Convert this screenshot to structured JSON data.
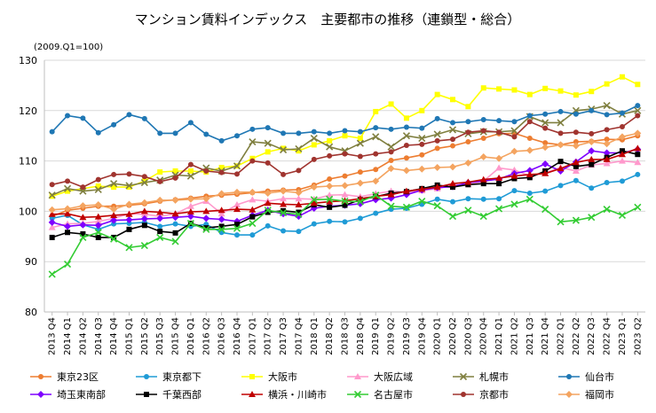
{
  "chart_data": {
    "type": "line",
    "title": "マンション賃料インデックス　主要都市の推移（連鎖型・総合）",
    "note": "(2009.Q1=100)",
    "xlabel": "",
    "ylabel": "",
    "ylim": [
      80,
      130
    ],
    "yticks": [
      80,
      90,
      100,
      110,
      120,
      130
    ],
    "grid": true,
    "legend_position": "bottom",
    "x": [
      "2013 Q4",
      "2014 Q1",
      "2014 Q2",
      "2014 Q3",
      "2014 Q4",
      "2015 Q1",
      "2015 Q2",
      "2015 Q3",
      "2015 Q4",
      "2016 Q1",
      "2016 Q2",
      "2016 Q3",
      "2016 Q4",
      "2017 Q1",
      "2017 Q2",
      "2017 Q3",
      "2017 Q4",
      "2018 Q1",
      "2018 Q2",
      "2018 Q3",
      "2018 Q4",
      "2019 Q1",
      "2019 Q2",
      "2019 Q3",
      "2019 Q4",
      "2020 Q1",
      "2020 Q2",
      "2020 Q3",
      "2020 Q4",
      "2021 Q1",
      "2021 Q2",
      "2021 Q3",
      "2021 Q4",
      "2022 Q1",
      "2022 Q2",
      "2022 Q3",
      "2022 Q4",
      "2023 Q1",
      "2023 Q2"
    ],
    "series": [
      {
        "name": "東京23区",
        "color": "#ED7D31",
        "marker": "circle",
        "values": [
          99.0,
          100.2,
          100.6,
          101.0,
          101.0,
          101.2,
          101.5,
          102.0,
          102.3,
          102.6,
          103.0,
          103.2,
          103.4,
          103.7,
          104.0,
          104.2,
          104.3,
          105.2,
          106.4,
          107.0,
          107.8,
          108.3,
          110.1,
          110.6,
          111.2,
          112.5,
          113.0,
          113.8,
          114.5,
          115.4,
          115.5,
          114.5,
          113.6,
          113.2,
          113.8,
          113.9,
          114.3,
          114.2,
          115.0
        ]
      },
      {
        "name": "東京都下",
        "color": "#1F9BD6",
        "marker": "circle",
        "values": [
          98.6,
          99.2,
          97.3,
          96.4,
          97.5,
          97.6,
          97.8,
          97.0,
          97.5,
          97.0,
          97.4,
          95.8,
          95.3,
          95.3,
          97.1,
          96.1,
          96.0,
          97.5,
          98.0,
          97.9,
          98.6,
          99.6,
          100.4,
          100.6,
          101.4,
          102.4,
          101.9,
          102.5,
          102.4,
          102.5,
          104.1,
          103.6,
          104.0,
          105.1,
          106.1,
          104.6,
          105.7,
          106.0,
          107.3
        ]
      },
      {
        "name": "大阪市",
        "color": "#FFFF00",
        "marker": "square",
        "values": [
          103.0,
          104.0,
          104.5,
          105.0,
          104.8,
          104.8,
          106.0,
          107.8,
          108.0,
          108.0,
          107.8,
          108.7,
          109.0,
          110.5,
          111.8,
          112.5,
          112.0,
          113.2,
          114.0,
          115.0,
          114.5,
          119.8,
          121.3,
          118.5,
          120.0,
          123.2,
          122.2,
          120.8,
          124.5,
          124.3,
          124.1,
          123.2,
          124.4,
          123.9,
          123.1,
          123.8,
          125.3,
          126.7,
          125.2
        ]
      },
      {
        "name": "大阪広域",
        "color": "#FF99CC",
        "marker": "triangle",
        "values": [
          96.8,
          97.5,
          97.6,
          98.0,
          98.6,
          99.5,
          99.4,
          99.0,
          99.5,
          101.0,
          102.0,
          99.5,
          101.3,
          102.3,
          102.0,
          102.5,
          102.5,
          102.4,
          103.2,
          103.3,
          102.9,
          103.5,
          104.0,
          103.8,
          104.1,
          104.5,
          105.2,
          105.3,
          106.0,
          108.6,
          108.2,
          107.0,
          107.6,
          108.7,
          108.0,
          109.2,
          109.5,
          110.0,
          109.7
        ]
      },
      {
        "name": "札幌市",
        "color": "#7F7F3F",
        "marker": "x",
        "values": [
          103.2,
          104.5,
          104.0,
          104.3,
          105.5,
          105.1,
          105.7,
          106.2,
          107.2,
          107.0,
          108.6,
          108.0,
          109.0,
          113.8,
          113.5,
          112.2,
          112.4,
          114.5,
          112.8,
          112.0,
          113.5,
          114.8,
          112.8,
          115.0,
          114.5,
          115.3,
          116.2,
          115.4,
          115.8,
          115.8,
          116.0,
          118.8,
          117.6,
          117.6,
          120.0,
          120.3,
          121.0,
          119.3,
          120.0
        ]
      },
      {
        "name": "仙台市",
        "color": "#1F77B4",
        "marker": "circle",
        "values": [
          115.8,
          119.0,
          118.5,
          115.6,
          117.2,
          119.2,
          118.4,
          115.5,
          115.5,
          117.6,
          115.3,
          114.0,
          115.0,
          116.3,
          116.6,
          115.5,
          115.5,
          115.8,
          115.5,
          116.0,
          115.8,
          116.6,
          116.3,
          116.7,
          116.5,
          118.4,
          117.6,
          117.8,
          118.2,
          118.0,
          117.8,
          119.0,
          119.3,
          119.8,
          119.3,
          120.0,
          119.2,
          119.5,
          121.0
        ]
      },
      {
        "name": "埼玉東南部",
        "color": "#7F00FF",
        "marker": "diamond",
        "values": [
          97.8,
          97.0,
          97.3,
          97.2,
          98.2,
          98.3,
          98.5,
          98.6,
          98.8,
          99.0,
          98.6,
          98.4,
          98.0,
          99.2,
          100.2,
          99.5,
          99.0,
          100.6,
          101.0,
          101.2,
          101.5,
          102.3,
          102.6,
          103.3,
          104.2,
          104.7,
          104.9,
          105.7,
          106.0,
          106.4,
          107.5,
          108.1,
          109.4,
          108.0,
          109.8,
          112.0,
          111.6,
          111.6,
          112.3
        ]
      },
      {
        "name": "千葉西部",
        "color": "#000000",
        "marker": "square",
        "values": [
          94.8,
          95.8,
          95.5,
          94.8,
          94.8,
          96.4,
          97.2,
          96.0,
          95.7,
          97.6,
          96.7,
          97.0,
          97.4,
          98.9,
          99.8,
          100.1,
          99.8,
          101.3,
          100.8,
          101.2,
          102.3,
          102.9,
          103.6,
          103.9,
          104.5,
          105.2,
          104.8,
          105.3,
          105.5,
          105.5,
          106.5,
          106.7,
          108.0,
          109.9,
          108.9,
          109.3,
          110.7,
          112.0,
          111.3
        ]
      },
      {
        "name": "横浜・川崎市",
        "color": "#C00000",
        "marker": "triangle",
        "values": [
          99.4,
          99.5,
          98.8,
          98.9,
          99.2,
          99.4,
          100.0,
          99.8,
          99.5,
          99.9,
          100.0,
          100.2,
          100.4,
          100.3,
          101.6,
          101.4,
          101.3,
          101.6,
          101.9,
          102.1,
          102.5,
          103.0,
          103.3,
          104.0,
          104.4,
          104.8,
          105.5,
          105.8,
          106.3,
          106.6,
          107.0,
          107.3,
          107.5,
          108.5,
          109.7,
          110.3,
          110.3,
          111.3,
          112.5
        ]
      },
      {
        "name": "名古屋市",
        "color": "#33CC33",
        "marker": "x",
        "values": [
          87.5,
          89.5,
          94.8,
          95.8,
          94.5,
          92.8,
          93.2,
          94.8,
          94.0,
          97.6,
          96.4,
          96.4,
          96.6,
          97.6,
          100.2,
          99.7,
          99.4,
          102.3,
          102.4,
          102.0,
          101.9,
          103.2,
          101.0,
          100.8,
          102.0,
          101.1,
          99.0,
          100.2,
          99.0,
          100.5,
          101.4,
          102.4,
          100.4,
          97.9,
          98.2,
          98.8,
          100.4,
          99.2,
          100.8
        ]
      },
      {
        "name": "京都市",
        "color": "#A0342F",
        "marker": "circle",
        "values": [
          105.3,
          106.0,
          104.8,
          106.3,
          107.3,
          107.4,
          106.9,
          105.9,
          106.6,
          109.3,
          108.0,
          107.7,
          107.4,
          110.0,
          109.6,
          107.3,
          108.1,
          110.3,
          111.0,
          111.4,
          110.9,
          111.4,
          111.8,
          113.1,
          113.3,
          114.0,
          114.3,
          115.7,
          116.0,
          115.7,
          114.8,
          117.8,
          116.5,
          115.5,
          115.7,
          115.4,
          116.2,
          116.8,
          119.0
        ]
      },
      {
        "name": "福岡市",
        "color": "#F4A460",
        "marker": "diamond",
        "values": [
          100.3,
          100.5,
          101.1,
          101.3,
          100.4,
          101.4,
          101.7,
          102.2,
          102.2,
          102.4,
          102.5,
          103.5,
          103.8,
          103.8,
          103.6,
          104.0,
          103.7,
          104.8,
          105.0,
          105.1,
          105.6,
          106.0,
          108.5,
          108.1,
          108.4,
          108.7,
          108.8,
          109.6,
          110.8,
          110.5,
          111.9,
          112.1,
          112.7,
          113.2,
          113.0,
          113.8,
          113.4,
          114.8,
          115.5
        ]
      }
    ]
  }
}
